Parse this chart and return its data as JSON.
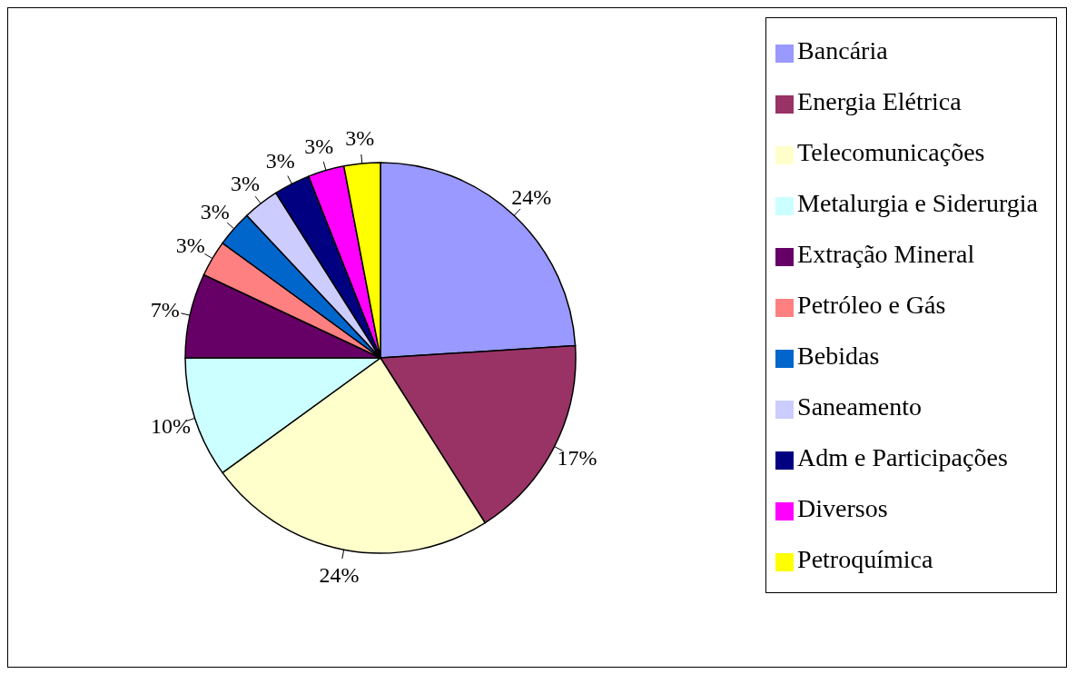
{
  "chart_data": {
    "type": "pie",
    "categories": [
      "Bancária",
      "Energia Elétrica",
      "Telecomunicações",
      "Metalurgia e Siderurgia",
      "Extração Mineral",
      "Petróleo e Gás",
      "Bebidas",
      "Saneamento",
      "Adm e Participações",
      "Diversos",
      "Petroquímica"
    ],
    "values": [
      24,
      17,
      24,
      10,
      7,
      3,
      3,
      3,
      3,
      3,
      3
    ],
    "colors": [
      "#9999ff",
      "#993366",
      "#ffffcc",
      "#ccffff",
      "#660066",
      "#ff8080",
      "#0066cc",
      "#ccccff",
      "#000080",
      "#ff00ff",
      "#ffff00"
    ],
    "value_labels": [
      "24%",
      "17%",
      "24%",
      "10%",
      "7%",
      "3%",
      "3%",
      "3%",
      "3%",
      "3%",
      "3%"
    ],
    "legend": "right"
  }
}
